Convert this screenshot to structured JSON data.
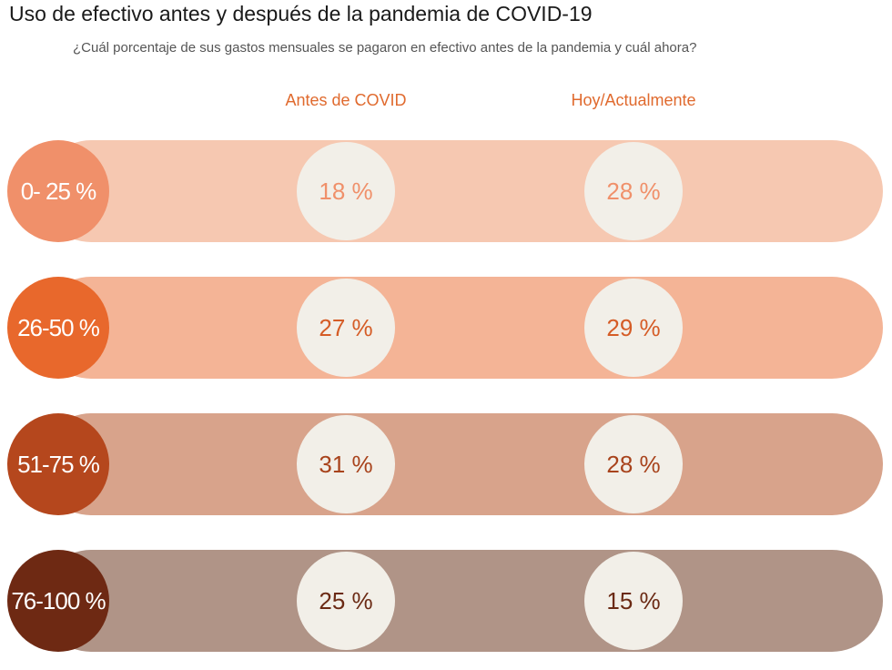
{
  "chart_data": {
    "type": "table",
    "title": "Uso de efectivo antes y después de la pandemia de COVID-19",
    "subtitle": "¿Cuál porcentaje de sus gastos mensuales se pagaron en efectivo antes de la pandemia y cuál ahora?",
    "columns": [
      "Antes de COVID",
      "Hoy/Actualmente"
    ],
    "rows": [
      {
        "category": "0- 25 %",
        "antes_label": "18 %",
        "hoy_label": "28 %",
        "antes": 18,
        "hoy": 28,
        "cat_color": "#f0906a",
        "band_color": "#f6c8b1",
        "text_color": "#f0906a"
      },
      {
        "category": "26-50 %",
        "antes_label": "27 %",
        "hoy_label": "29 %",
        "antes": 27,
        "hoy": 29,
        "cat_color": "#e8682c",
        "band_color": "#f4b496",
        "text_color": "#d55c26"
      },
      {
        "category": "51-75 %",
        "antes_label": "31 %",
        "hoy_label": "28 %",
        "antes": 31,
        "hoy": 28,
        "cat_color": "#b5471d",
        "band_color": "#d8a38b",
        "text_color": "#a8431c"
      },
      {
        "category": "76-100 %",
        "antes_label": "25 %",
        "hoy_label": "15 %",
        "antes": 25,
        "hoy": 15,
        "cat_color": "#6e2913",
        "band_color": "#b09487",
        "text_color": "#6b2a14"
      }
    ]
  }
}
